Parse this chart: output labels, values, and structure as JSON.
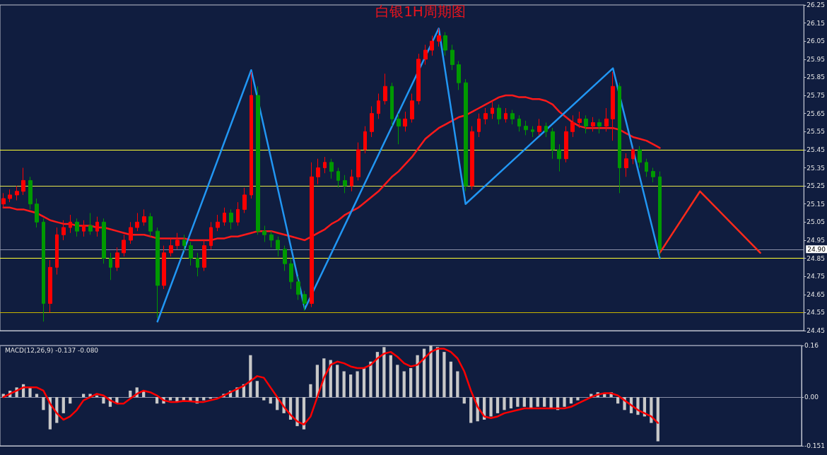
{
  "chart_data": [
    {
      "type": "candlestick",
      "title": "白银1H周期图",
      "categories": [
        null,
        null,
        null,
        null,
        null,
        null,
        null,
        null,
        null,
        null,
        null,
        null,
        null,
        null,
        null,
        null,
        null,
        null,
        null,
        null,
        null,
        null,
        null,
        null,
        null,
        null,
        null,
        null,
        null,
        null,
        null,
        null,
        null,
        null,
        null,
        null,
        null,
        null,
        null,
        null,
        null,
        null,
        null,
        null,
        null,
        null,
        null,
        null,
        null,
        null,
        null,
        null,
        null,
        null,
        null,
        null,
        null,
        null,
        null,
        null,
        null,
        null,
        null,
        null,
        null,
        null,
        null,
        null,
        null,
        null,
        null,
        null,
        null,
        null,
        null,
        null,
        null,
        null,
        null,
        null,
        null,
        null,
        null,
        null,
        null,
        null,
        null,
        null,
        null,
        null,
        null,
        null,
        null,
        null,
        null,
        null,
        null,
        null,
        null,
        null,
        null,
        null,
        null,
        null,
        null,
        null,
        null,
        null,
        null,
        null,
        null,
        null,
        null,
        null,
        null,
        null,
        null,
        null,
        null,
        null
      ],
      "series": [
        {
          "type": "candlestick",
          "colors": [
            "#ff0000",
            "#ff0000",
            "#ff0000",
            "#ff0000",
            "#009900",
            "#009900",
            "#009900",
            "#ff0000",
            "#ff0000",
            "#ff0000",
            "#ff0000",
            "#009900",
            "#ff0000",
            "#009900",
            "#ff0000",
            "#009900",
            "#009900",
            "#ff0000",
            "#ff0000",
            "#ff0000",
            "#ff0000",
            "#ff0000",
            "#009900",
            "#009900",
            "#ff0000",
            "#ff0000",
            "#ff0000",
            "#009900",
            "#009900",
            "#009900",
            "#ff0000",
            "#ff0000",
            "#ff0000",
            "#ff0000",
            "#009900",
            "#ff0000",
            "#ff0000",
            "#ff0000",
            "#009900",
            "#009900",
            "#009900",
            "#009900",
            "#009900",
            "#009900",
            "#009900",
            "#009900",
            "#ff0000",
            "#ff0000",
            "#ff0000",
            "#009900",
            "#009900",
            "#009900",
            "#ff0000",
            "#ff0000",
            "#ff0000",
            "#ff0000",
            "#ff0000",
            "#ff0000",
            "#009900",
            "#009900",
            "#ff0000",
            "#ff0000",
            "#ff0000",
            "#ff0000",
            "#ff0000",
            "#ff0000",
            "#009900",
            "#009900",
            "#009900",
            "#009900",
            "#ff0000",
            "#ff0000",
            "#ff0000",
            "#ff0000",
            "#009900",
            "#ff0000",
            "#009900",
            "#009900",
            "#009900",
            "#009900",
            "#ff0000",
            "#009900",
            "#009900",
            "#009900",
            "#ff0000",
            "#ff0000",
            "#ff0000",
            "#009900",
            "#ff0000",
            "#009900",
            "#ff0000",
            "#ff0000",
            "#009900",
            "#ff0000",
            "#ff0000",
            "#009900",
            "#009900",
            "#009900",
            "#009900",
            null,
            null,
            null,
            null,
            null,
            null,
            null,
            null,
            null,
            null,
            null,
            null,
            null,
            null,
            null,
            null,
            null,
            null,
            null,
            null,
            null
          ],
          "ohlc": [
            [
              25.15,
              25.21,
              25.13,
              25.18
            ],
            [
              25.18,
              25.23,
              25.16,
              25.2
            ],
            [
              25.2,
              25.25,
              25.17,
              25.22
            ],
            [
              25.22,
              25.35,
              25.2,
              25.28
            ],
            [
              25.28,
              25.3,
              25.12,
              25.15
            ],
            [
              25.15,
              25.18,
              25.02,
              25.05
            ],
            [
              25.05,
              25.07,
              24.5,
              24.6
            ],
            [
              24.6,
              24.84,
              24.55,
              24.8
            ],
            [
              24.8,
              25.02,
              24.76,
              24.98
            ],
            [
              24.98,
              25.06,
              24.95,
              25.02
            ],
            [
              25.02,
              25.09,
              24.99,
              25.05
            ],
            [
              25.05,
              25.07,
              24.97,
              25.0
            ],
            [
              25.0,
              25.06,
              24.97,
              25.03
            ],
            [
              25.03,
              25.1,
              24.98,
              25.0
            ],
            [
              25.0,
              25.08,
              24.97,
              25.05
            ],
            [
              25.05,
              25.07,
              24.82,
              24.85
            ],
            [
              24.85,
              24.88,
              24.73,
              24.8
            ],
            [
              24.8,
              24.91,
              24.78,
              24.88
            ],
            [
              24.88,
              24.98,
              24.86,
              24.95
            ],
            [
              24.95,
              25.05,
              24.93,
              25.02
            ],
            [
              25.02,
              25.1,
              25.0,
              25.05
            ],
            [
              25.05,
              25.12,
              25.03,
              25.08
            ],
            [
              25.08,
              25.1,
              24.97,
              25.0
            ],
            [
              25.0,
              25.02,
              24.52,
              24.7
            ],
            [
              24.7,
              24.92,
              24.68,
              24.88
            ],
            [
              24.88,
              24.96,
              24.86,
              24.92
            ],
            [
              24.92,
              24.99,
              24.9,
              24.95
            ],
            [
              24.95,
              24.98,
              24.89,
              24.92
            ],
            [
              24.92,
              24.94,
              24.81,
              24.85
            ],
            [
              24.85,
              24.88,
              24.75,
              24.8
            ],
            [
              24.8,
              24.95,
              24.78,
              24.92
            ],
            [
              24.92,
              25.05,
              24.9,
              25.02
            ],
            [
              25.02,
              25.09,
              25.0,
              25.05
            ],
            [
              25.05,
              25.13,
              25.03,
              25.1
            ],
            [
              25.1,
              25.12,
              25.01,
              25.05
            ],
            [
              25.05,
              25.16,
              25.03,
              25.12
            ],
            [
              25.12,
              25.24,
              25.1,
              25.2
            ],
            [
              25.2,
              25.88,
              25.18,
              25.75
            ],
            [
              25.75,
              25.8,
              24.98,
              25.0
            ],
            [
              25.0,
              25.03,
              24.94,
              24.98
            ],
            [
              24.98,
              25.0,
              24.91,
              24.95
            ],
            [
              24.95,
              24.97,
              24.86,
              24.9
            ],
            [
              24.9,
              24.92,
              24.78,
              24.82
            ],
            [
              24.82,
              24.85,
              24.68,
              24.72
            ],
            [
              24.72,
              24.75,
              24.62,
              24.65
            ],
            [
              24.65,
              24.67,
              24.56,
              24.6
            ],
            [
              24.6,
              25.38,
              24.58,
              25.3
            ],
            [
              25.3,
              25.4,
              25.26,
              25.35
            ],
            [
              25.35,
              25.41,
              25.32,
              25.38
            ],
            [
              25.38,
              25.4,
              25.29,
              25.33
            ],
            [
              25.33,
              25.35,
              25.24,
              25.28
            ],
            [
              25.28,
              25.31,
              25.21,
              25.25
            ],
            [
              25.25,
              25.34,
              25.22,
              25.3
            ],
            [
              25.3,
              25.49,
              25.28,
              25.45
            ],
            [
              25.45,
              25.58,
              25.43,
              25.55
            ],
            [
              25.55,
              25.69,
              25.52,
              25.65
            ],
            [
              25.65,
              25.76,
              25.62,
              25.72
            ],
            [
              25.72,
              25.87,
              25.7,
              25.8
            ],
            [
              25.8,
              25.82,
              25.58,
              25.62
            ],
            [
              25.62,
              25.65,
              25.48,
              25.58
            ],
            [
              25.58,
              25.66,
              25.55,
              25.62
            ],
            [
              25.62,
              25.76,
              25.6,
              25.72
            ],
            [
              25.72,
              25.98,
              25.7,
              25.95
            ],
            [
              25.95,
              26.03,
              25.92,
              26.0
            ],
            [
              26.0,
              26.08,
              25.97,
              26.05
            ],
            [
              26.05,
              26.12,
              26.02,
              26.08
            ],
            [
              26.08,
              26.1,
              25.97,
              26.0
            ],
            [
              26.0,
              26.03,
              25.89,
              25.92
            ],
            [
              25.92,
              25.94,
              25.78,
              25.82
            ],
            [
              25.82,
              25.84,
              25.22,
              25.25
            ],
            [
              25.25,
              25.58,
              25.23,
              25.55
            ],
            [
              25.55,
              25.65,
              25.52,
              25.62
            ],
            [
              25.62,
              25.68,
              25.59,
              25.65
            ],
            [
              25.65,
              25.72,
              25.62,
              25.68
            ],
            [
              25.68,
              25.7,
              25.59,
              25.62
            ],
            [
              25.62,
              25.68,
              25.6,
              25.65
            ],
            [
              25.65,
              25.67,
              25.59,
              25.62
            ],
            [
              25.62,
              25.64,
              25.55,
              25.58
            ],
            [
              25.58,
              25.61,
              25.53,
              25.56
            ],
            [
              25.56,
              25.58,
              25.52,
              25.55
            ],
            [
              25.55,
              25.62,
              25.53,
              25.58
            ],
            [
              25.58,
              25.6,
              25.52,
              25.55
            ],
            [
              25.55,
              25.57,
              25.4,
              25.45
            ],
            [
              25.45,
              25.48,
              25.33,
              25.4
            ],
            [
              25.4,
              25.58,
              25.38,
              25.55
            ],
            [
              25.55,
              25.64,
              25.52,
              25.6
            ],
            [
              25.6,
              25.66,
              25.57,
              25.62
            ],
            [
              25.62,
              25.64,
              25.54,
              25.58
            ],
            [
              25.58,
              25.63,
              25.55,
              25.6
            ],
            [
              25.6,
              25.62,
              25.54,
              25.58
            ],
            [
              25.58,
              25.68,
              25.55,
              25.62
            ],
            [
              25.62,
              25.88,
              25.5,
              25.8
            ],
            [
              25.8,
              25.82,
              25.21,
              25.35
            ],
            [
              25.35,
              25.43,
              25.3,
              25.4
            ],
            [
              25.4,
              25.46,
              25.37,
              25.45
            ],
            [
              25.45,
              25.47,
              25.35,
              25.38
            ],
            [
              25.38,
              25.4,
              25.3,
              25.33
            ],
            [
              25.33,
              25.35,
              25.27,
              25.3
            ],
            [
              25.3,
              25.33,
              24.86,
              24.9
            ],
            null,
            null,
            null,
            null,
            null,
            null,
            null,
            null,
            null,
            null,
            null,
            null,
            null,
            null,
            null,
            null,
            null,
            null,
            null,
            null,
            null
          ]
        },
        {
          "type": "line",
          "color": "#ff1a1a",
          "values": [
            25.13,
            25.13,
            25.12,
            25.12,
            25.11,
            25.1,
            25.08,
            25.06,
            25.05,
            25.04,
            25.04,
            25.03,
            25.03,
            25.03,
            25.02,
            25.02,
            25.01,
            25.0,
            24.99,
            24.98,
            24.98,
            24.98,
            24.97,
            24.96,
            24.96,
            24.96,
            24.96,
            24.96,
            24.95,
            24.95,
            24.95,
            24.95,
            24.96,
            24.96,
            24.97,
            24.97,
            24.98,
            24.99,
            25.0,
            25.0,
            25.0,
            24.99,
            24.98,
            24.97,
            24.96,
            24.95,
            24.97,
            24.99,
            25.01,
            25.04,
            25.06,
            25.09,
            25.11,
            25.13,
            25.16,
            25.19,
            25.22,
            25.26,
            25.3,
            25.33,
            25.37,
            25.41,
            25.46,
            25.51,
            25.54,
            25.57,
            25.59,
            25.61,
            25.63,
            25.64,
            25.66,
            25.68,
            25.7,
            25.72,
            25.74,
            25.75,
            25.75,
            25.74,
            25.74,
            25.73,
            25.73,
            25.72,
            25.7,
            25.66,
            25.63,
            25.6,
            25.58,
            25.57,
            25.57,
            25.57,
            25.57,
            25.57,
            25.56,
            25.54,
            25.52,
            25.51,
            25.5,
            25.48,
            25.46,
            null,
            null,
            null,
            null,
            null,
            null,
            null,
            null,
            null,
            null,
            null,
            null,
            null,
            null,
            null,
            null,
            null,
            null,
            null,
            null,
            null
          ]
        },
        {
          "type": "line",
          "color": "#2196f3",
          "values": [
            null,
            null,
            null,
            null,
            null,
            null,
            null,
            null,
            null,
            null,
            null,
            null,
            null,
            null,
            null,
            null,
            null,
            null,
            null,
            null,
            null,
            null,
            null,
            24.5,
            null,
            null,
            null,
            null,
            null,
            null,
            null,
            null,
            null,
            null,
            null,
            null,
            null,
            25.89,
            null,
            null,
            null,
            null,
            null,
            null,
            null,
            24.57,
            null,
            null,
            null,
            null,
            null,
            null,
            null,
            null,
            null,
            null,
            null,
            null,
            null,
            null,
            null,
            null,
            null,
            null,
            null,
            26.12,
            null,
            null,
            null,
            25.15,
            null,
            null,
            null,
            null,
            null,
            null,
            null,
            null,
            null,
            null,
            null,
            null,
            null,
            null,
            null,
            null,
            null,
            null,
            null,
            null,
            null,
            25.9,
            null,
            null,
            null,
            null,
            null,
            null,
            24.85,
            null,
            null,
            null,
            null,
            null,
            null,
            null,
            null,
            null,
            null,
            null,
            null,
            null,
            null,
            null,
            null,
            null,
            null,
            null,
            null,
            null
          ]
        },
        {
          "type": "line",
          "color": "#ff2a1a",
          "values": [
            null,
            null,
            null,
            null,
            null,
            null,
            null,
            null,
            null,
            null,
            null,
            null,
            null,
            null,
            null,
            null,
            null,
            null,
            null,
            null,
            null,
            null,
            null,
            null,
            null,
            null,
            null,
            null,
            null,
            null,
            null,
            null,
            null,
            null,
            null,
            null,
            null,
            null,
            null,
            null,
            null,
            null,
            null,
            null,
            null,
            null,
            null,
            null,
            null,
            null,
            null,
            null,
            null,
            null,
            null,
            null,
            null,
            null,
            null,
            null,
            null,
            null,
            null,
            null,
            null,
            null,
            null,
            null,
            null,
            null,
            null,
            null,
            null,
            null,
            null,
            null,
            null,
            null,
            null,
            null,
            null,
            null,
            null,
            null,
            null,
            null,
            null,
            null,
            null,
            null,
            null,
            null,
            null,
            null,
            null,
            null,
            null,
            null,
            24.88,
            null,
            null,
            null,
            null,
            null,
            25.22,
            null,
            null,
            null,
            null,
            null,
            null,
            null,
            null,
            24.88,
            null,
            null,
            null,
            null,
            null,
            null
          ]
        }
      ],
      "ylim": [
        24.45,
        26.25
      ],
      "yticks": [
        24.45,
        24.55,
        24.65,
        24.75,
        24.85,
        24.95,
        25.05,
        25.15,
        25.25,
        25.35,
        25.45,
        25.55,
        25.65,
        25.75,
        25.85,
        25.95,
        26.05,
        26.15,
        26.25
      ],
      "ref_lines": [
        {
          "axis": "y",
          "value": 25.45,
          "color": "#ffff33"
        },
        {
          "axis": "y",
          "value": 25.25,
          "color": "#e6e64d"
        },
        {
          "axis": "y",
          "value": 24.85,
          "color": "#ffff33"
        },
        {
          "axis": "y",
          "value": 24.55,
          "color": "#c8b400"
        },
        {
          "axis": "y",
          "value": 24.9,
          "label": "24.90",
          "color": "#8a90a8"
        }
      ],
      "tick_labels": "y",
      "grid": false
    },
    {
      "type": "bar",
      "title": "MACD(12,26,9) -0.137 -0.080",
      "categories": [
        null,
        null,
        null,
        null,
        null,
        null,
        null,
        null,
        null,
        null,
        null,
        null,
        null,
        null,
        null,
        null,
        null,
        null,
        null,
        null,
        null,
        null,
        null,
        null,
        null,
        null,
        null,
        null,
        null,
        null,
        null,
        null,
        null,
        null,
        null,
        null,
        null,
        null,
        null,
        null,
        null,
        null,
        null,
        null,
        null,
        null,
        null,
        null,
        null,
        null,
        null,
        null,
        null,
        null,
        null,
        null,
        null,
        null,
        null,
        null,
        null,
        null,
        null,
        null,
        null,
        null,
        null,
        null,
        null,
        null,
        null,
        null,
        null,
        null,
        null,
        null,
        null,
        null,
        null,
        null,
        null,
        null,
        null,
        null,
        null,
        null,
        null,
        null,
        null,
        null,
        null,
        null,
        null,
        null,
        null,
        null,
        null,
        null,
        null,
        null,
        null,
        null,
        null,
        null,
        null,
        null,
        null,
        null,
        null,
        null,
        null,
        null,
        null,
        null,
        null,
        null,
        null,
        null,
        null,
        null
      ],
      "series": [
        {
          "type": "bar",
          "color": "#c8c8c8",
          "values": [
            0.01,
            0.02,
            0.03,
            0.04,
            0.03,
            0.01,
            -0.04,
            -0.1,
            -0.08,
            -0.05,
            -0.02,
            0.0,
            0.01,
            0.01,
            0.005,
            -0.02,
            -0.03,
            -0.02,
            0.0,
            0.02,
            0.03,
            0.02,
            0.0,
            -0.02,
            -0.02,
            -0.01,
            -0.015,
            -0.01,
            -0.015,
            -0.02,
            -0.01,
            -0.005,
            0.0,
            0.01,
            0.02,
            0.03,
            0.04,
            0.13,
            0.05,
            -0.01,
            -0.02,
            -0.04,
            -0.05,
            -0.07,
            -0.09,
            -0.1,
            0.04,
            0.1,
            0.12,
            0.115,
            0.1,
            0.08,
            0.07,
            0.08,
            0.09,
            0.11,
            0.14,
            0.155,
            0.13,
            0.1,
            0.08,
            0.09,
            0.13,
            0.15,
            0.16,
            0.155,
            0.14,
            0.11,
            0.08,
            -0.02,
            -0.08,
            -0.075,
            -0.07,
            -0.06,
            -0.05,
            -0.04,
            -0.035,
            -0.03,
            -0.03,
            -0.035,
            -0.03,
            -0.03,
            -0.035,
            -0.04,
            -0.03,
            -0.02,
            -0.01,
            0.0,
            0.01,
            0.015,
            0.01,
            0.015,
            -0.02,
            -0.04,
            -0.05,
            -0.055,
            -0.06,
            -0.08,
            -0.137,
            null,
            null,
            null,
            null,
            null,
            null,
            null,
            null,
            null,
            null,
            null,
            null,
            null,
            null,
            null,
            null,
            null,
            null,
            null,
            null,
            null
          ]
        },
        {
          "type": "line",
          "color": "#ff0000",
          "values": [
            0.0,
            0.01,
            0.02,
            0.03,
            0.03,
            0.03,
            0.02,
            -0.02,
            -0.05,
            -0.07,
            -0.06,
            -0.04,
            -0.01,
            0.0,
            0.01,
            0.005,
            -0.01,
            -0.02,
            -0.02,
            -0.005,
            0.01,
            0.02,
            0.015,
            0.005,
            -0.01,
            -0.015,
            -0.015,
            -0.012,
            -0.013,
            -0.015,
            -0.015,
            -0.01,
            -0.005,
            0.005,
            0.015,
            0.025,
            0.035,
            0.05,
            0.065,
            0.06,
            0.03,
            0.0,
            -0.03,
            -0.055,
            -0.075,
            -0.085,
            -0.06,
            0.0,
            0.06,
            0.1,
            0.11,
            0.105,
            0.095,
            0.09,
            0.09,
            0.1,
            0.12,
            0.135,
            0.14,
            0.125,
            0.105,
            0.095,
            0.1,
            0.12,
            0.14,
            0.15,
            0.15,
            0.14,
            0.12,
            0.08,
            0.02,
            -0.03,
            -0.06,
            -0.065,
            -0.06,
            -0.05,
            -0.045,
            -0.04,
            -0.035,
            -0.035,
            -0.035,
            -0.035,
            -0.035,
            -0.035,
            -0.035,
            -0.03,
            -0.02,
            -0.01,
            0.0,
            0.008,
            0.012,
            0.012,
            0.005,
            -0.01,
            -0.025,
            -0.04,
            -0.05,
            -0.06,
            -0.08,
            null,
            null,
            null,
            null,
            null,
            null,
            null,
            null,
            null,
            null,
            null,
            null,
            null,
            null,
            null,
            null,
            null,
            null,
            null,
            null,
            null
          ]
        }
      ],
      "ylim": [
        -0.151,
        0.16
      ],
      "yticks": [
        0.16,
        {
          "value": 0,
          "label": "0.00"
        },
        -0.151
      ],
      "tick_labels": "y",
      "grid": "y"
    }
  ]
}
